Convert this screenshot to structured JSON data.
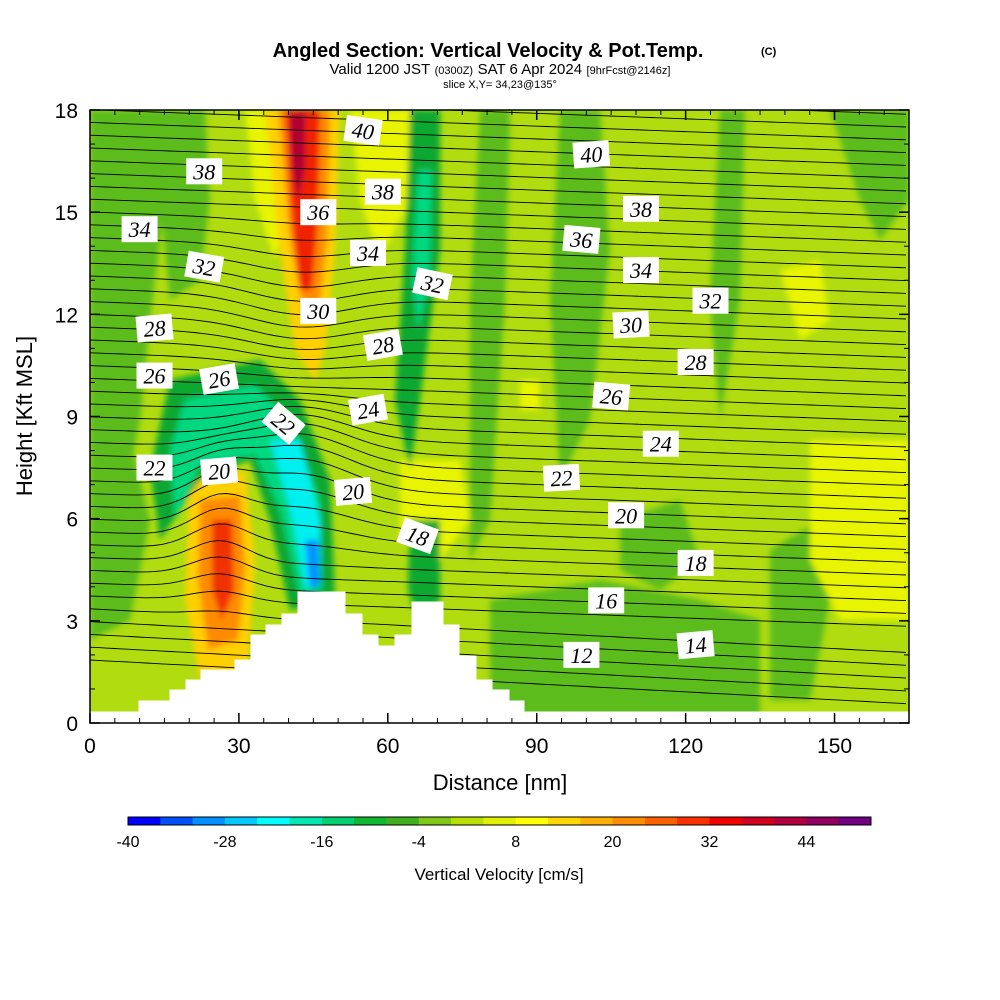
{
  "header": {
    "title": "Angled Section: Vertical Velocity & Pot.Temp.",
    "title_unit": "(C)",
    "valid_prefix": "Valid 1200 JST",
    "valid_utc": "(0300Z)",
    "valid_date": "SAT 6 Apr 2024",
    "forecast": "[9hrFcst@2146z]",
    "slice": "slice X,Y= 34,23@135°"
  },
  "chart_data": {
    "type": "heatmap",
    "xlabel": "Distance [nm]",
    "ylabel": "Height [Kft MSL]",
    "xlim": [
      0,
      165
    ],
    "ylim": [
      0,
      18
    ],
    "xticks": [
      "0",
      "30",
      "60",
      "90",
      "120",
      "150"
    ],
    "yticks": [
      "0",
      "3",
      "6",
      "9",
      "12",
      "15",
      "18"
    ],
    "colorbar": {
      "label": "Vertical Velocity [cm/s]",
      "min": -40,
      "max": 52,
      "step": 4,
      "tick_labels": [
        "-40",
        "-28",
        "-16",
        "-4",
        "8",
        "20",
        "32",
        "44"
      ],
      "colors": [
        "#0000ff",
        "#0050ff",
        "#0090ff",
        "#00c8ff",
        "#00ffff",
        "#00e8b0",
        "#00d070",
        "#10b830",
        "#40b020",
        "#80c818",
        "#b8e000",
        "#e0f000",
        "#ffff00",
        "#ffd800",
        "#ffb000",
        "#ff8c00",
        "#ff6000",
        "#ff3000",
        "#f00000",
        "#d00020",
        "#b00040",
        "#900060",
        "#700080"
      ]
    },
    "contour_labels": [
      {
        "text": "40",
        "x": 55,
        "y": 17.4,
        "rot": 8
      },
      {
        "text": "40",
        "x": 101,
        "y": 16.7,
        "rot": -4
      },
      {
        "text": "38",
        "x": 23,
        "y": 16.2,
        "rot": 0
      },
      {
        "text": "38",
        "x": 59,
        "y": 15.6,
        "rot": 0
      },
      {
        "text": "38",
        "x": 111,
        "y": 15.1,
        "rot": 0
      },
      {
        "text": "36",
        "x": 46,
        "y": 15.0,
        "rot": 0
      },
      {
        "text": "36",
        "x": 99,
        "y": 14.2,
        "rot": 5
      },
      {
        "text": "34",
        "x": 10,
        "y": 14.5,
        "rot": 0
      },
      {
        "text": "34",
        "x": 56,
        "y": 13.8,
        "rot": 0
      },
      {
        "text": "34",
        "x": 111,
        "y": 13.3,
        "rot": 0
      },
      {
        "text": "32",
        "x": 23,
        "y": 13.4,
        "rot": 10
      },
      {
        "text": "32",
        "x": 69,
        "y": 12.9,
        "rot": 12
      },
      {
        "text": "32",
        "x": 125,
        "y": 12.4,
        "rot": 0
      },
      {
        "text": "30",
        "x": 46,
        "y": 12.1,
        "rot": 0
      },
      {
        "text": "30",
        "x": 109,
        "y": 11.7,
        "rot": -3
      },
      {
        "text": "28",
        "x": 13,
        "y": 11.6,
        "rot": -5
      },
      {
        "text": "28",
        "x": 59,
        "y": 11.1,
        "rot": -10
      },
      {
        "text": "28",
        "x": 122,
        "y": 10.6,
        "rot": 0
      },
      {
        "text": "26",
        "x": 13,
        "y": 10.2,
        "rot": 0
      },
      {
        "text": "26",
        "x": 26,
        "y": 10.1,
        "rot": -10
      },
      {
        "text": "26",
        "x": 105,
        "y": 9.6,
        "rot": 5
      },
      {
        "text": "24",
        "x": 56,
        "y": 9.2,
        "rot": -10
      },
      {
        "text": "24",
        "x": 115,
        "y": 8.2,
        "rot": 0
      },
      {
        "text": "22",
        "x": 39,
        "y": 8.8,
        "rot": 40
      },
      {
        "text": "22",
        "x": 13,
        "y": 7.5,
        "rot": 0
      },
      {
        "text": "22",
        "x": 95,
        "y": 7.2,
        "rot": -3
      },
      {
        "text": "20",
        "x": 26,
        "y": 7.4,
        "rot": -5
      },
      {
        "text": "20",
        "x": 53,
        "y": 6.8,
        "rot": -5
      },
      {
        "text": "20",
        "x": 108,
        "y": 6.1,
        "rot": 0
      },
      {
        "text": "18",
        "x": 66,
        "y": 5.5,
        "rot": 20
      },
      {
        "text": "18",
        "x": 122,
        "y": 4.7,
        "rot": 0
      },
      {
        "text": "16",
        "x": 104,
        "y": 3.6,
        "rot": 0
      },
      {
        "text": "14",
        "x": 122,
        "y": 2.3,
        "rot": -5
      },
      {
        "text": "12",
        "x": 99,
        "y": 2.0,
        "rot": 0
      }
    ]
  }
}
